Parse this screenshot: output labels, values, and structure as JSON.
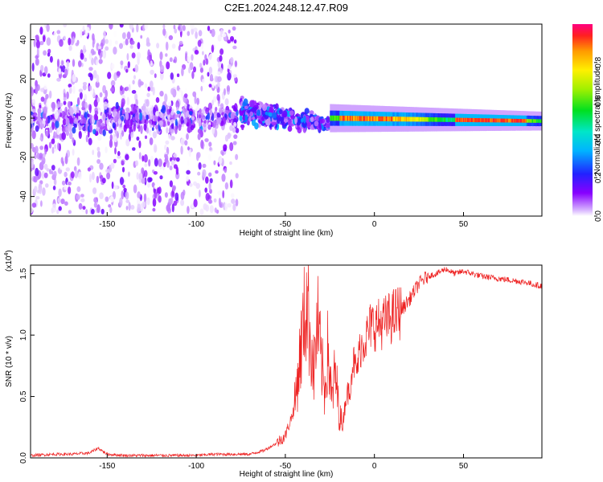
{
  "title": "C2E1.2024.248.12.47.R09",
  "chart_data": [
    {
      "type": "heatmap",
      "title": "C2E1.2024.248.12.47.R09",
      "xlabel": "Height of straight line (km)",
      "ylabel": "Frequency (Hz)",
      "xlim": [
        -193,
        94
      ],
      "ylim": [
        -50,
        48
      ],
      "x_ticks": [
        -150,
        -100,
        -50,
        0,
        50
      ],
      "x_tick_labels": [
        "-150",
        "-100",
        "-50",
        "0",
        "50"
      ],
      "y_ticks": [
        -40,
        -20,
        0,
        20,
        40
      ],
      "y_tick_labels": [
        "-40",
        "-20",
        "0",
        "20",
        "40"
      ],
      "colorbar": {
        "label": "Normalized spectral amplitude",
        "range": [
          0,
          1
        ],
        "ticks": [
          0.0,
          0.2,
          0.4,
          0.6,
          0.8
        ],
        "tick_labels": [
          "0.0",
          "0.2",
          "0.4",
          "0.6",
          "0.8"
        ],
        "colormap": "rainbow (purple to red)"
      },
      "description_regions": [
        {
          "x_range": [
            -193,
            -77
          ],
          "freq_range": [
            -48,
            48
          ],
          "amplitude": [
            0.0,
            0.15
          ],
          "note": "scattered low-amplitude blobs, stronger near 0 Hz"
        },
        {
          "x_range": [
            -75,
            -25
          ],
          "freq_center": [
            3,
            -3
          ],
          "freq_halfwidth": [
            10,
            4
          ],
          "amplitude": [
            0.1,
            0.35
          ]
        },
        {
          "x_range": [
            -25,
            94
          ],
          "freq_center": [
            0,
            -1.5
          ],
          "freq_halfwidth": [
            3,
            2
          ],
          "amplitude": [
            0.4,
            1.0
          ],
          "note": "narrow strong band near 0 Hz"
        }
      ]
    },
    {
      "type": "line",
      "xlabel": "Height of straight line (km)",
      "ylabel": "SNR (10 * v/v)",
      "y_multiplier": "(x10",
      "y_multiplier_exp": "4",
      "y_multiplier_close": ")",
      "xlim": [
        -193,
        94
      ],
      "ylim": [
        0,
        1.57
      ],
      "x_ticks": [
        -150,
        -100,
        -50,
        0,
        50
      ],
      "x_tick_labels": [
        "-150",
        "-100",
        "-50",
        "0",
        "50"
      ],
      "y_ticks": [
        0.0,
        0.5,
        1.0,
        1.5
      ],
      "y_tick_labels": [
        "0.0",
        "0.5",
        "1.0",
        "1.5"
      ],
      "grid": false,
      "series": [
        {
          "color": "#ee2222",
          "x": [
            -193,
            -180,
            -170,
            -160,
            -155,
            -150,
            -140,
            -130,
            -120,
            -110,
            -100,
            -90,
            -80,
            -70,
            -62,
            -55,
            -50,
            -45,
            -42,
            -38,
            -36,
            -34,
            -32,
            -30,
            -28,
            -26,
            -24,
            -22,
            -20,
            -18,
            -16,
            -14,
            -12,
            -10,
            -8,
            -6,
            -4,
            -2,
            0,
            5,
            10,
            15,
            20,
            25,
            30,
            35,
            40,
            45,
            50,
            55,
            60,
            65,
            70,
            75,
            80,
            85,
            90,
            94
          ],
          "y": [
            0.02,
            0.03,
            0.03,
            0.04,
            0.08,
            0.03,
            0.02,
            0.02,
            0.02,
            0.02,
            0.02,
            0.03,
            0.03,
            0.03,
            0.06,
            0.12,
            0.18,
            0.4,
            0.8,
            1.3,
            1.0,
            0.7,
            1.1,
            0.8,
            0.55,
            0.9,
            0.45,
            0.7,
            0.4,
            0.25,
            0.5,
            0.55,
            0.8,
            0.7,
            0.9,
            0.95,
            1.0,
            1.08,
            1.08,
            1.1,
            1.15,
            1.2,
            1.3,
            1.42,
            1.48,
            1.5,
            1.54,
            1.5,
            1.52,
            1.5,
            1.48,
            1.47,
            1.46,
            1.45,
            1.44,
            1.43,
            1.41,
            1.4
          ]
        }
      ]
    }
  ]
}
